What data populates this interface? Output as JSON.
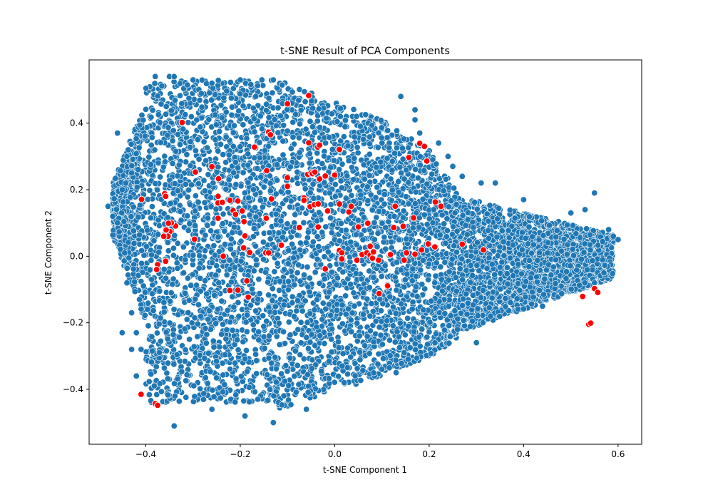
{
  "chart_data": {
    "type": "scatter",
    "title": "t-SNE Result of PCA Components",
    "xlabel": "t-SNE Component 1",
    "ylabel": "t-SNE Component 2",
    "xlim": [
      -0.52,
      0.65
    ],
    "ylim": [
      -0.565,
      0.59
    ],
    "xticks": [
      -0.4,
      -0.2,
      0.0,
      0.2,
      0.4,
      0.6
    ],
    "xtick_labels": [
      "−0.4",
      "−0.2",
      "0.0",
      "0.2",
      "0.4",
      "0.6"
    ],
    "yticks": [
      -0.4,
      -0.2,
      0.0,
      0.2,
      0.4
    ],
    "ytick_labels": [
      "−0.4",
      "−0.2",
      "0.0",
      "0.2",
      "0.4"
    ],
    "grid": false,
    "legend": "none",
    "colors": {
      "main": "#1f77b4",
      "highlight": "#ff0000",
      "marker_edge": "#ffffff"
    },
    "series": [
      {
        "color": "#1f77b4",
        "shape": "dense wedge-shaped cloud of several thousand points spanning x -0.48 to 0.60 and y -0.52 to 0.54, tapering to the right",
        "points": [
          [
            -0.48,
            0.15
          ],
          [
            -0.47,
            0.12
          ],
          [
            -0.46,
            0.1
          ],
          [
            -0.45,
            0.2
          ],
          [
            -0.46,
            0.37
          ],
          [
            -0.44,
            0.3
          ],
          [
            -0.43,
            0.25
          ],
          [
            -0.45,
            -0.23
          ],
          [
            -0.44,
            -0.08
          ],
          [
            -0.43,
            -0.17
          ],
          [
            -0.42,
            -0.23
          ],
          [
            -0.43,
            -0.28
          ],
          [
            -0.41,
            -0.28
          ],
          [
            -0.42,
            -0.36
          ],
          [
            -0.38,
            0.54
          ],
          [
            -0.35,
            0.54
          ],
          [
            -0.34,
            0.54
          ],
          [
            -0.3,
            0.53
          ],
          [
            -0.26,
            0.52
          ],
          [
            -0.2,
            0.53
          ],
          [
            -0.13,
            0.53
          ],
          [
            -0.34,
            -0.51
          ],
          [
            -0.13,
            -0.5
          ],
          [
            -0.19,
            -0.48
          ],
          [
            -0.26,
            -0.46
          ],
          [
            -0.06,
            -0.46
          ],
          [
            0.02,
            -0.38
          ],
          [
            0.1,
            -0.34
          ],
          [
            0.13,
            -0.35
          ],
          [
            0.3,
            -0.26
          ],
          [
            0.26,
            -0.22
          ],
          [
            0.33,
            -0.18
          ],
          [
            0.44,
            -0.15
          ],
          [
            0.55,
            0.19
          ],
          [
            0.58,
            0.08
          ],
          [
            0.59,
            0.06
          ],
          [
            0.6,
            0.05
          ],
          [
            0.57,
            -0.05
          ],
          [
            0.55,
            -0.08
          ],
          [
            0.53,
            0.14
          ],
          [
            0.5,
            0.13
          ],
          [
            0.4,
            0.17
          ],
          [
            0.34,
            0.22
          ],
          [
            0.31,
            0.22
          ],
          [
            0.27,
            0.24
          ],
          [
            0.25,
            0.27
          ],
          [
            0.24,
            0.3
          ],
          [
            0.22,
            0.34
          ],
          [
            0.18,
            0.37
          ],
          [
            0.17,
            0.41
          ],
          [
            0.17,
            0.44
          ],
          [
            0.14,
            0.48
          ]
        ]
      },
      {
        "color": "#ff0000",
        "points": [
          [
            -0.323,
            0.402
          ],
          [
            -0.295,
            0.253
          ],
          [
            -0.26,
            0.269
          ],
          [
            -0.246,
            0.233
          ],
          [
            -0.247,
            0.18
          ],
          [
            -0.247,
            0.16
          ],
          [
            -0.238,
            0.162
          ],
          [
            -0.222,
            0.168
          ],
          [
            -0.215,
            0.137
          ],
          [
            -0.21,
            0.126
          ],
          [
            -0.205,
            0.166
          ],
          [
            -0.196,
            0.136
          ],
          [
            -0.192,
            0.104
          ],
          [
            -0.19,
            0.061
          ],
          [
            -0.193,
            0.025
          ],
          [
            -0.18,
            0.011
          ],
          [
            -0.247,
            0.114
          ],
          [
            -0.236,
            0.0
          ],
          [
            -0.297,
            0.051
          ],
          [
            -0.337,
            0.091
          ],
          [
            -0.346,
            0.1
          ],
          [
            -0.349,
            0.074
          ],
          [
            -0.353,
            0.06
          ],
          [
            -0.357,
            0.079
          ],
          [
            -0.362,
            0.06
          ],
          [
            -0.36,
            0.188
          ],
          [
            -0.358,
            0.18
          ],
          [
            -0.352,
            0.099
          ],
          [
            -0.409,
            0.171
          ],
          [
            -0.375,
            -0.025
          ],
          [
            -0.377,
            -0.04
          ],
          [
            -0.358,
            -0.015
          ],
          [
            -0.222,
            -0.103
          ],
          [
            -0.205,
            -0.102
          ],
          [
            -0.186,
            -0.074
          ],
          [
            -0.183,
            -0.123
          ],
          [
            -0.41,
            -0.415
          ],
          [
            -0.38,
            -0.443
          ],
          [
            -0.375,
            -0.448
          ],
          [
            -0.17,
            0.328
          ],
          [
            -0.14,
            0.373
          ],
          [
            -0.136,
            0.365
          ],
          [
            -0.144,
            0.257
          ],
          [
            -0.134,
            0.172
          ],
          [
            -0.145,
            0.114
          ],
          [
            -0.146,
            0.01
          ],
          [
            -0.14,
            0.01
          ],
          [
            -0.113,
            0.033
          ],
          [
            -0.1,
            0.458
          ],
          [
            -0.1,
            0.236
          ],
          [
            -0.1,
            0.21
          ],
          [
            -0.075,
            0.086
          ],
          [
            -0.065,
            0.175
          ],
          [
            -0.065,
            0.168
          ],
          [
            -0.057,
            0.246
          ],
          [
            -0.055,
            0.483
          ],
          [
            -0.055,
            0.341
          ],
          [
            -0.05,
            0.251
          ],
          [
            -0.047,
            0.248
          ],
          [
            -0.042,
            0.253
          ],
          [
            -0.052,
            0.149
          ],
          [
            -0.043,
            0.155
          ],
          [
            -0.035,
            0.157
          ],
          [
            -0.036,
            0.328
          ],
          [
            -0.032,
            0.334
          ],
          [
            -0.032,
            0.232
          ],
          [
            -0.035,
            0.088
          ],
          [
            -0.02,
            0.241
          ],
          [
            -0.015,
            0.136
          ],
          [
            -0.02,
            -0.038
          ],
          [
            0.0,
            0.244
          ],
          [
            0.01,
            0.321
          ],
          [
            0.01,
            0.157
          ],
          [
            0.01,
            0.017
          ],
          [
            0.015,
            0.01
          ],
          [
            0.015,
            -0.008
          ],
          [
            0.03,
            0.133
          ],
          [
            0.035,
            0.15
          ],
          [
            0.05,
            0.088
          ],
          [
            0.047,
            -0.012
          ],
          [
            0.058,
            0.005
          ],
          [
            0.068,
            0.01
          ],
          [
            0.07,
            0.099
          ],
          [
            0.075,
            0.03
          ],
          [
            0.075,
            0.003
          ],
          [
            0.082,
            0.013
          ],
          [
            0.08,
            -0.006
          ],
          [
            0.093,
            -0.012
          ],
          [
            0.094,
            -0.112
          ],
          [
            0.112,
            -0.089
          ],
          [
            0.118,
            0.005
          ],
          [
            0.125,
            0.086
          ],
          [
            0.128,
            0.15
          ],
          [
            0.145,
            0.09
          ],
          [
            0.147,
            -0.012
          ],
          [
            0.152,
            0.01
          ],
          [
            0.157,
            0.297
          ],
          [
            0.167,
            0.115
          ],
          [
            0.17,
            0.006
          ],
          [
            0.18,
            0.339
          ],
          [
            0.19,
            0.33
          ],
          [
            0.184,
            0.019
          ],
          [
            0.195,
            0.286
          ],
          [
            0.198,
            0.037
          ],
          [
            0.212,
            0.028
          ],
          [
            0.213,
            0.163
          ],
          [
            0.225,
            0.15
          ],
          [
            0.27,
            0.036
          ],
          [
            0.315,
            0.019
          ],
          [
            0.525,
            -0.121
          ],
          [
            0.55,
            -0.097
          ],
          [
            0.557,
            -0.109
          ],
          [
            0.538,
            -0.205
          ],
          [
            0.542,
            -0.201
          ]
        ]
      }
    ]
  }
}
